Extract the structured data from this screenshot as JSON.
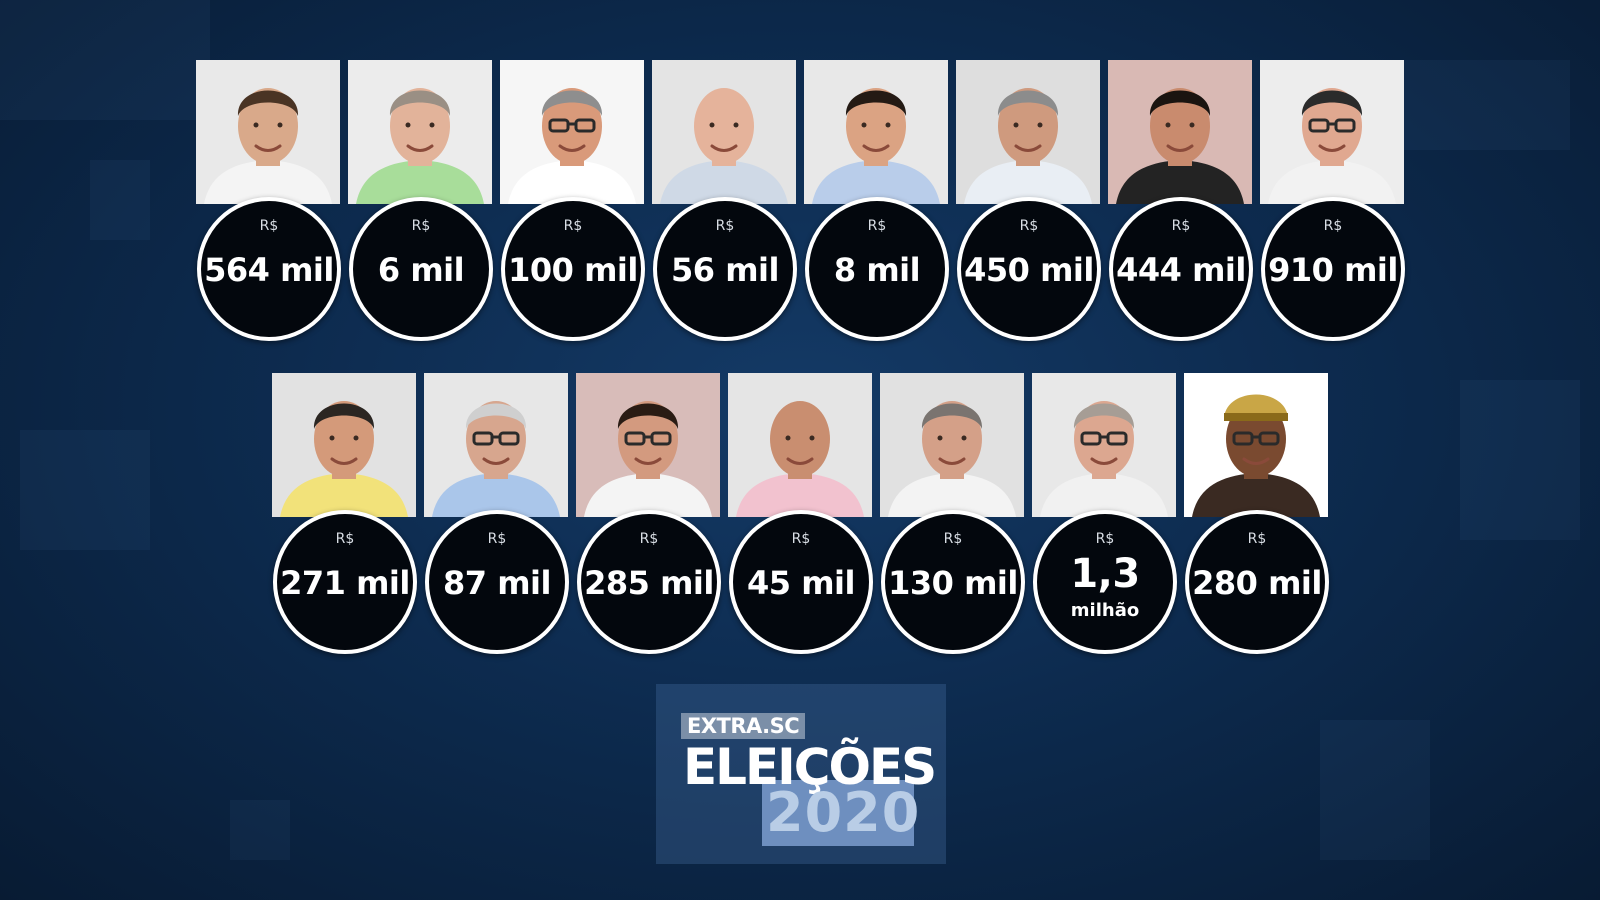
{
  "colors": {
    "background": "#0d2b4f",
    "bubble": "#03070d",
    "bubble_border": "#ffffff",
    "logo_accent": "#6e8fbf"
  },
  "rows": [
    [
      {
        "currency": "R$",
        "amount": "564 mil",
        "bg": "#e9e9e9",
        "skin": "#d9a98a",
        "hair": "#4a3424",
        "shirt": "#f4f4f4"
      },
      {
        "currency": "R$",
        "amount": "6 mil",
        "bg": "#ececec",
        "skin": "#e2b39a",
        "hair": "#9a8f84",
        "shirt": "#a8dd9a"
      },
      {
        "currency": "R$",
        "amount": "100 mil",
        "bg": "#f6f6f6",
        "skin": "#d99a7a",
        "hair": "#8e8e8e",
        "shirt": "#ffffff",
        "glasses": true
      },
      {
        "currency": "R$",
        "amount": "56 mil",
        "bg": "#e4e4e4",
        "skin": "#e5b39b",
        "hair": "#e5b39b",
        "shirt": "#cfd9e6",
        "bald": true
      },
      {
        "currency": "R$",
        "amount": "8 mil",
        "bg": "#e8e8e8",
        "skin": "#dba383",
        "hair": "#241a14",
        "shirt": "#b9cdea"
      },
      {
        "currency": "R$",
        "amount": "450 mil",
        "bg": "#dedede",
        "skin": "#cf9a7e",
        "hair": "#8c8c8c",
        "shirt": "#e9eef4"
      },
      {
        "currency": "R$",
        "amount": "444 mil",
        "bg": "#d9b9b4",
        "skin": "#c98b6e",
        "hair": "#1a1410",
        "shirt": "#232323"
      },
      {
        "currency": "R$",
        "amount": "910 mil",
        "bg": "#ededed",
        "skin": "#e0a890",
        "hair": "#2b2b2b",
        "shirt": "#f2f2f2",
        "glasses": true
      }
    ],
    [
      {
        "currency": "R$",
        "amount": "271 mil",
        "bg": "#e2e2e2",
        "skin": "#d49a7a",
        "hair": "#2b2622",
        "shirt": "#f2e27a"
      },
      {
        "currency": "R$",
        "amount": "87 mil",
        "bg": "#e7e7e7",
        "skin": "#d7a68e",
        "hair": "#cfcfcf",
        "shirt": "#aac6ea",
        "glasses": true
      },
      {
        "currency": "R$",
        "amount": "285 mil",
        "bg": "#d8bcb9",
        "skin": "#d39a7f",
        "hair": "#2a1c14",
        "shirt": "#f4f4f4",
        "glasses": true
      },
      {
        "currency": "R$",
        "amount": "45 mil",
        "bg": "#e5e5e5",
        "skin": "#c98e70",
        "hair": "#c98e70",
        "shirt": "#f2c2cf",
        "bald": true
      },
      {
        "currency": "R$",
        "amount": "130 mil",
        "bg": "#e1e1e1",
        "skin": "#d4a088",
        "hair": "#7a7470",
        "shirt": "#f3f3f3"
      },
      {
        "currency": "R$",
        "amount": "1,3",
        "unit": "milhão",
        "bg": "#e8e8e8",
        "skin": "#dca790",
        "hair": "#a69d95",
        "shirt": "#f1f1f1",
        "glasses": true
      },
      {
        "currency": "R$",
        "amount": "280 mil",
        "bg": "#ffffff",
        "skin": "#7a4a30",
        "hair": "#2a1f1a",
        "shirt": "#3a2a22",
        "glasses": true,
        "cap": true
      }
    ]
  ],
  "logo": {
    "brand": "EXTRA.SC",
    "title": "ELEIÇÕES",
    "year": "2020"
  }
}
